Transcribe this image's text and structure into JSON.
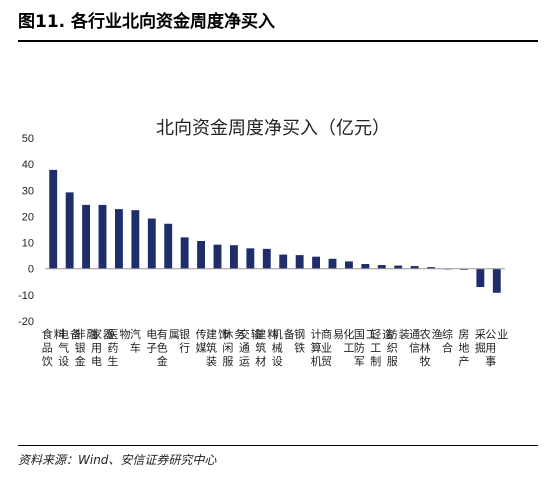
{
  "figure": {
    "title": "图11. 各行业北向资金周度净买入",
    "source": "资料来源：Wind、安信证券研究中心"
  },
  "colors": {
    "bar": "#1F2E6B",
    "axis": "#999999",
    "text": "#222222"
  },
  "chart_data": {
    "type": "bar",
    "title": "北向资金周度净买入（亿元）",
    "xlabel": "",
    "ylabel": "",
    "ylim": [
      -20,
      50
    ],
    "yticks": [
      -20,
      -10,
      0,
      10,
      20,
      30,
      40,
      50
    ],
    "grid": false,
    "legend": "none",
    "categories": [
      "食品饮料",
      "电气设备",
      "非银金融",
      "家用电器",
      "医药生物",
      "汽车",
      "电子",
      "有色金属",
      "银行",
      "传媒",
      "建筑装饰",
      "休闲服务",
      "交通运输",
      "建筑材料",
      "机械设备",
      "钢铁",
      "计算机",
      "商业贸易",
      "化工",
      "国防军工",
      "轻工制造",
      "纺织服装",
      "通信",
      "农林牧渔",
      "综合",
      "房地产",
      "采掘",
      "公用事业"
    ],
    "values": [
      37.8,
      29.2,
      24.4,
      24.4,
      22.8,
      22.4,
      19.2,
      17.2,
      12.0,
      10.6,
      9.2,
      9.0,
      7.8,
      7.6,
      5.4,
      5.2,
      4.6,
      3.8,
      2.8,
      1.8,
      1.4,
      1.2,
      1.0,
      0.6,
      -0.3,
      -0.4,
      -7.0,
      -9.2
    ]
  }
}
